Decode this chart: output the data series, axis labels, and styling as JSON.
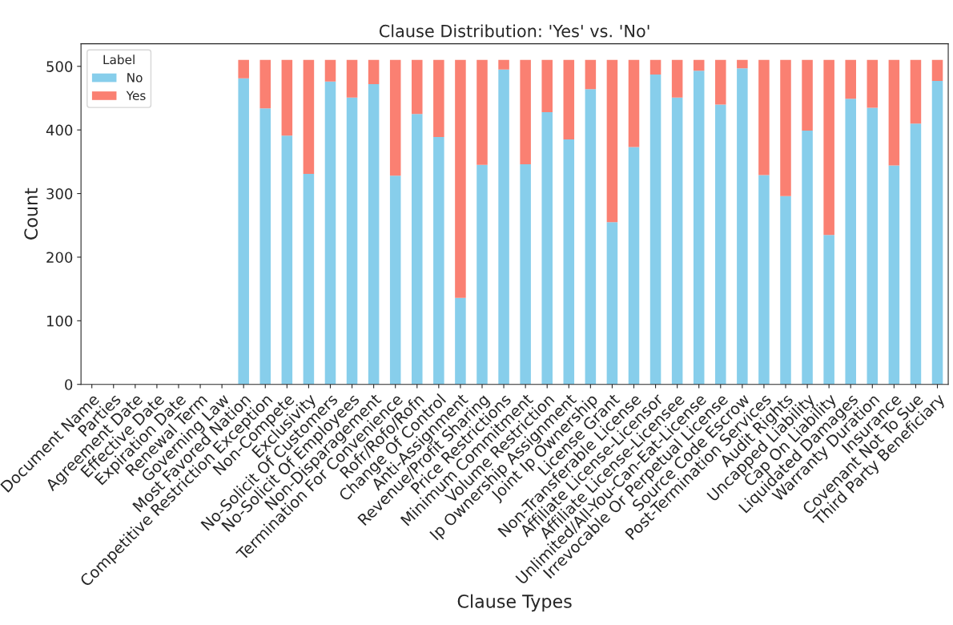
{
  "chart_data": {
    "type": "bar",
    "title": "Clause Distribution: 'Yes' vs. 'No'",
    "xlabel": "Clause Types",
    "ylabel": "Count",
    "legend_title": "Label",
    "legend": "top left",
    "stacked": true,
    "grid": false,
    "categories": [
      "Document Name",
      "Parties",
      "Agreement Date",
      "Effective Date",
      "Expiration Date",
      "Renewal Term",
      "Governing Law",
      "Most Favored Nation",
      "Competitive Restriction Exception",
      "Non-Compete",
      "Exclusivity",
      "No-Solicit Of Customers",
      "No-Solicit Of Employees",
      "Non-Disparagement",
      "Termination For Convenience",
      "Rofr/Rofo/Rofn",
      "Change Of Control",
      "Anti-Assignment",
      "Revenue/Profit Sharing",
      "Price Restrictions",
      "Minimum Commitment",
      "Volume Restriction",
      "Ip Ownership Assignment",
      "Joint Ip Ownership",
      "License Grant",
      "Non-Transferable License",
      "Affiliate License-Licensor",
      "Affiliate License-Licensee",
      "Unlimited/All-You-Can-Eat-License",
      "Irrevocable Or Perpetual License",
      "Source Code Escrow",
      "Post-Termination Services",
      "Audit Rights",
      "Uncapped Liability",
      "Cap On Liability",
      "Liquidated Damages",
      "Warranty Duration",
      "Insurance",
      "Covenant Not To Sue",
      "Third Party Beneficiary"
    ],
    "series": [
      {
        "name": "No",
        "color": "#87ceeb",
        "values": [
          null,
          null,
          null,
          null,
          null,
          null,
          null,
          481,
          434,
          391,
          331,
          476,
          451,
          472,
          328,
          425,
          389,
          136,
          345,
          495,
          346,
          428,
          385,
          464,
          255,
          373,
          487,
          451,
          493,
          440,
          497,
          329,
          296,
          399,
          235,
          449,
          435,
          344,
          410,
          477
        ]
      },
      {
        "name": "Yes",
        "color": "#fa8072",
        "values": [
          null,
          null,
          null,
          null,
          null,
          null,
          null,
          29,
          76,
          119,
          179,
          34,
          59,
          38,
          182,
          85,
          121,
          374,
          165,
          15,
          164,
          82,
          125,
          46,
          255,
          137,
          23,
          59,
          17,
          70,
          13,
          181,
          214,
          111,
          275,
          61,
          75,
          166,
          100,
          33
        ]
      }
    ],
    "ylim": [
      0,
      535.5
    ],
    "yticks": [
      0,
      100,
      200,
      300,
      400,
      500
    ]
  }
}
